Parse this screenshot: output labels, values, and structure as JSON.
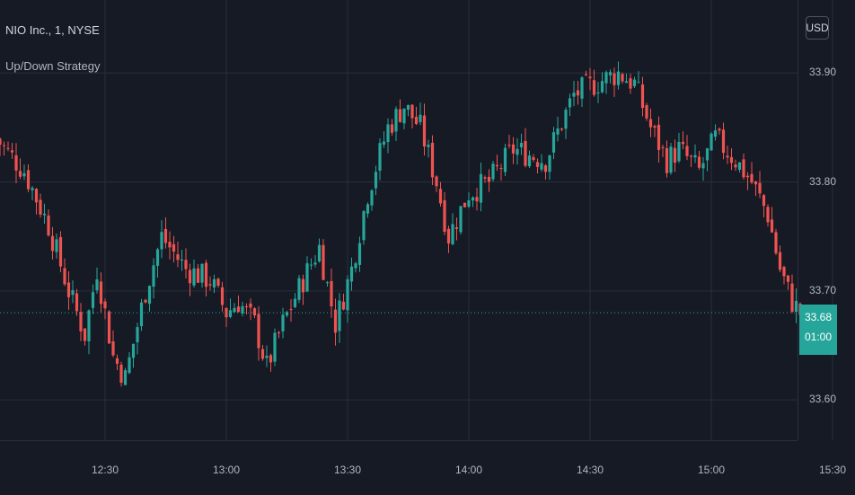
{
  "header": {
    "symbol": "NIO Inc., 1, NYSE",
    "study": "Up/Down Strategy"
  },
  "currency_button": "USD",
  "last_price": {
    "price": "33.68",
    "countdown": "01:00"
  },
  "colors": {
    "up": "#26a69a",
    "down": "#ef5350",
    "background": "#161a25",
    "grid": "#2a2e39",
    "text": "#b2b5be"
  },
  "chart_data": {
    "type": "candlestick",
    "price_ticks": [
      "33.90",
      "33.80",
      "33.70",
      "33.60"
    ],
    "time_ticks": [
      "12:30",
      "13:00",
      "13:30",
      "14:00",
      "14:30",
      "15:00",
      "15:30"
    ],
    "y_range": [
      33.563,
      33.967
    ],
    "close_trend": [
      [
        "12:03",
        33.84
      ],
      [
        "12:10",
        33.81
      ],
      [
        "12:16",
        33.76
      ],
      [
        "12:21",
        33.7
      ],
      [
        "12:25",
        33.66
      ],
      [
        "12:28",
        33.72
      ],
      [
        "12:32",
        33.64
      ],
      [
        "12:35",
        33.62
      ],
      [
        "12:40",
        33.7
      ],
      [
        "12:44",
        33.75
      ],
      [
        "12:50",
        33.72
      ],
      [
        "12:56",
        33.71
      ],
      [
        "13:00",
        33.68
      ],
      [
        "13:03",
        33.69
      ],
      [
        "13:07",
        33.67
      ],
      [
        "13:10",
        33.63
      ],
      [
        "13:14",
        33.67
      ],
      [
        "13:19",
        33.71
      ],
      [
        "13:23",
        33.74
      ],
      [
        "13:27",
        33.67
      ],
      [
        "13:31",
        33.72
      ],
      [
        "13:35",
        33.79
      ],
      [
        "13:40",
        33.85
      ],
      [
        "13:44",
        33.87
      ],
      [
        "13:48",
        33.85
      ],
      [
        "13:52",
        33.8
      ],
      [
        "13:55",
        33.75
      ],
      [
        "14:00",
        33.79
      ],
      [
        "14:05",
        33.8
      ],
      [
        "14:11",
        33.83
      ],
      [
        "14:19",
        33.82
      ],
      [
        "14:26",
        33.88
      ],
      [
        "14:31",
        33.89
      ],
      [
        "14:37",
        33.9
      ],
      [
        "14:41",
        33.89
      ],
      [
        "14:45",
        33.85
      ],
      [
        "14:49",
        33.82
      ],
      [
        "14:52",
        33.83
      ],
      [
        "14:57",
        33.81
      ],
      [
        "15:01",
        33.84
      ],
      [
        "15:06",
        33.82
      ],
      [
        "15:10",
        33.8
      ],
      [
        "15:14",
        33.77
      ],
      [
        "15:17",
        33.72
      ],
      [
        "15:20",
        33.69
      ],
      [
        "15:22",
        33.68
      ]
    ]
  }
}
